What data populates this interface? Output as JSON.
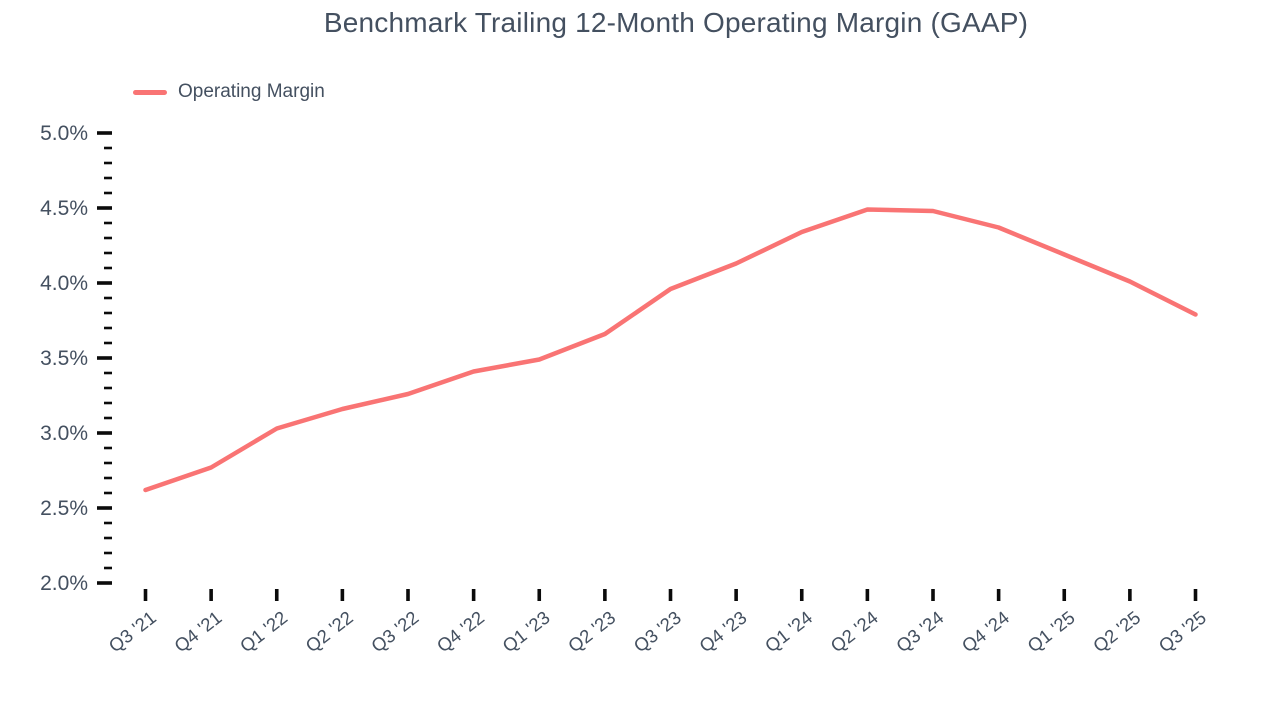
{
  "header": {
    "title": "Benchmark Trailing 12-Month Operating Margin (GAAP)"
  },
  "legend": {
    "label": "Operating Margin",
    "swatch_color": "#f97474"
  },
  "chart_data": {
    "type": "line",
    "title": "Benchmark Trailing 12-Month Operating Margin (GAAP)",
    "categories": [
      "Q3 '21",
      "Q4 '21",
      "Q1 '22",
      "Q2 '22",
      "Q3 '22",
      "Q4 '22",
      "Q1 '23",
      "Q2 '23",
      "Q3 '23",
      "Q4 '23",
      "Q1 '24",
      "Q2 '24",
      "Q3 '24",
      "Q4 '24",
      "Q1 '25",
      "Q2 '25",
      "Q3 '25"
    ],
    "series": [
      {
        "name": "Operating Margin",
        "color": "#f97474",
        "values": [
          2.62,
          2.77,
          3.03,
          3.16,
          3.26,
          3.41,
          3.49,
          3.66,
          3.96,
          4.13,
          4.34,
          4.49,
          4.48,
          4.37,
          4.19,
          4.01,
          3.79
        ]
      }
    ],
    "xlabel": "",
    "ylabel": "",
    "ylim": [
      2.0,
      5.0
    ],
    "y_major_step": 0.5,
    "y_minor_step": 0.1,
    "y_tick_suffix": "%",
    "grid": false,
    "legend_position": "top-left",
    "axis_text_color": "#445060",
    "tick_color": "#0b0b0b"
  }
}
